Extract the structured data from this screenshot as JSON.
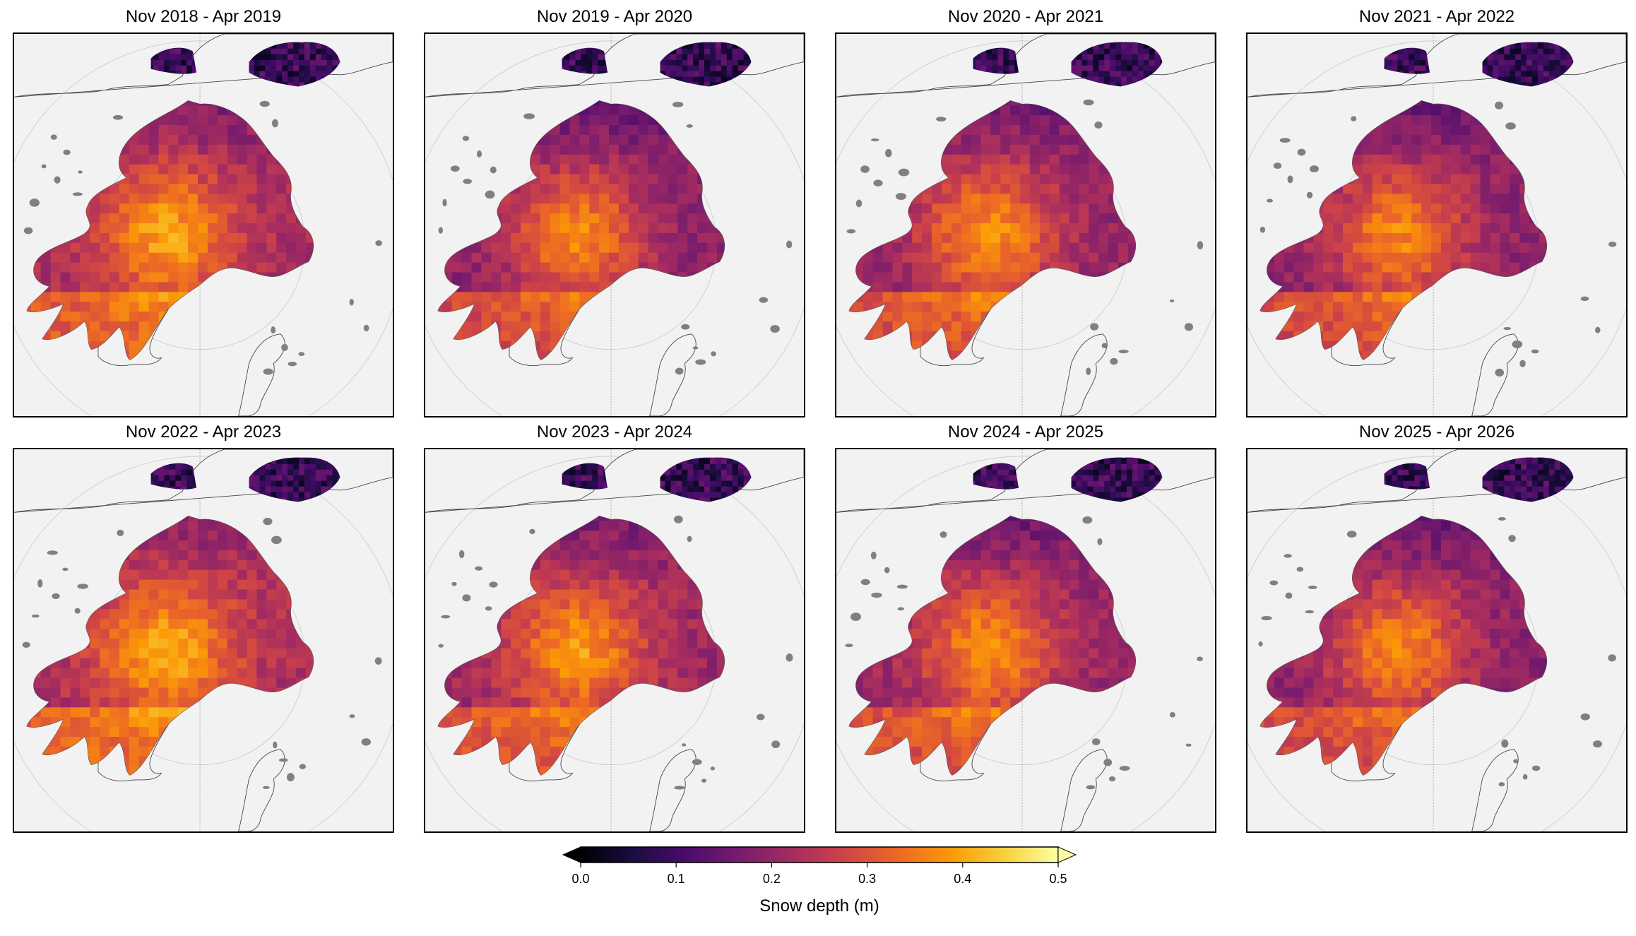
{
  "panels": [
    {
      "title": "Nov 2018 - Apr 2019",
      "mean_depth": 0.22,
      "seed": 11
    },
    {
      "title": "Nov 2019 - Apr 2020",
      "mean_depth": 0.19,
      "seed": 23
    },
    {
      "title": "Nov 2020 - Apr 2021",
      "mean_depth": 0.2,
      "seed": 37
    },
    {
      "title": "Nov 2021 - Apr 2022",
      "mean_depth": 0.19,
      "seed": 41
    },
    {
      "title": "Nov 2022 - Apr 2023",
      "mean_depth": 0.23,
      "seed": 53
    },
    {
      "title": "Nov 2023 - Apr 2024",
      "mean_depth": 0.21,
      "seed": 67
    },
    {
      "title": "Nov 2024 - Apr 2025",
      "mean_depth": 0.2,
      "seed": 79
    },
    {
      "title": "Nov 2025 - Apr 2026",
      "mean_depth": 0.19,
      "seed": 83
    }
  ],
  "colorbar": {
    "label": "Snow depth (m)",
    "min": 0.0,
    "max": 0.5,
    "ticks": [
      "0.0",
      "0.1",
      "0.2",
      "0.3",
      "0.4",
      "0.5"
    ],
    "colormap": "inferno",
    "extend": "both",
    "colors": [
      "#000004",
      "#1b0c41",
      "#4a0c6b",
      "#781c6d",
      "#a52c60",
      "#cf4446",
      "#ed6925",
      "#fb9b06",
      "#f7d13d",
      "#fcffa4"
    ]
  },
  "land_color": "#f2f2f2",
  "lake_color": "#808080"
}
